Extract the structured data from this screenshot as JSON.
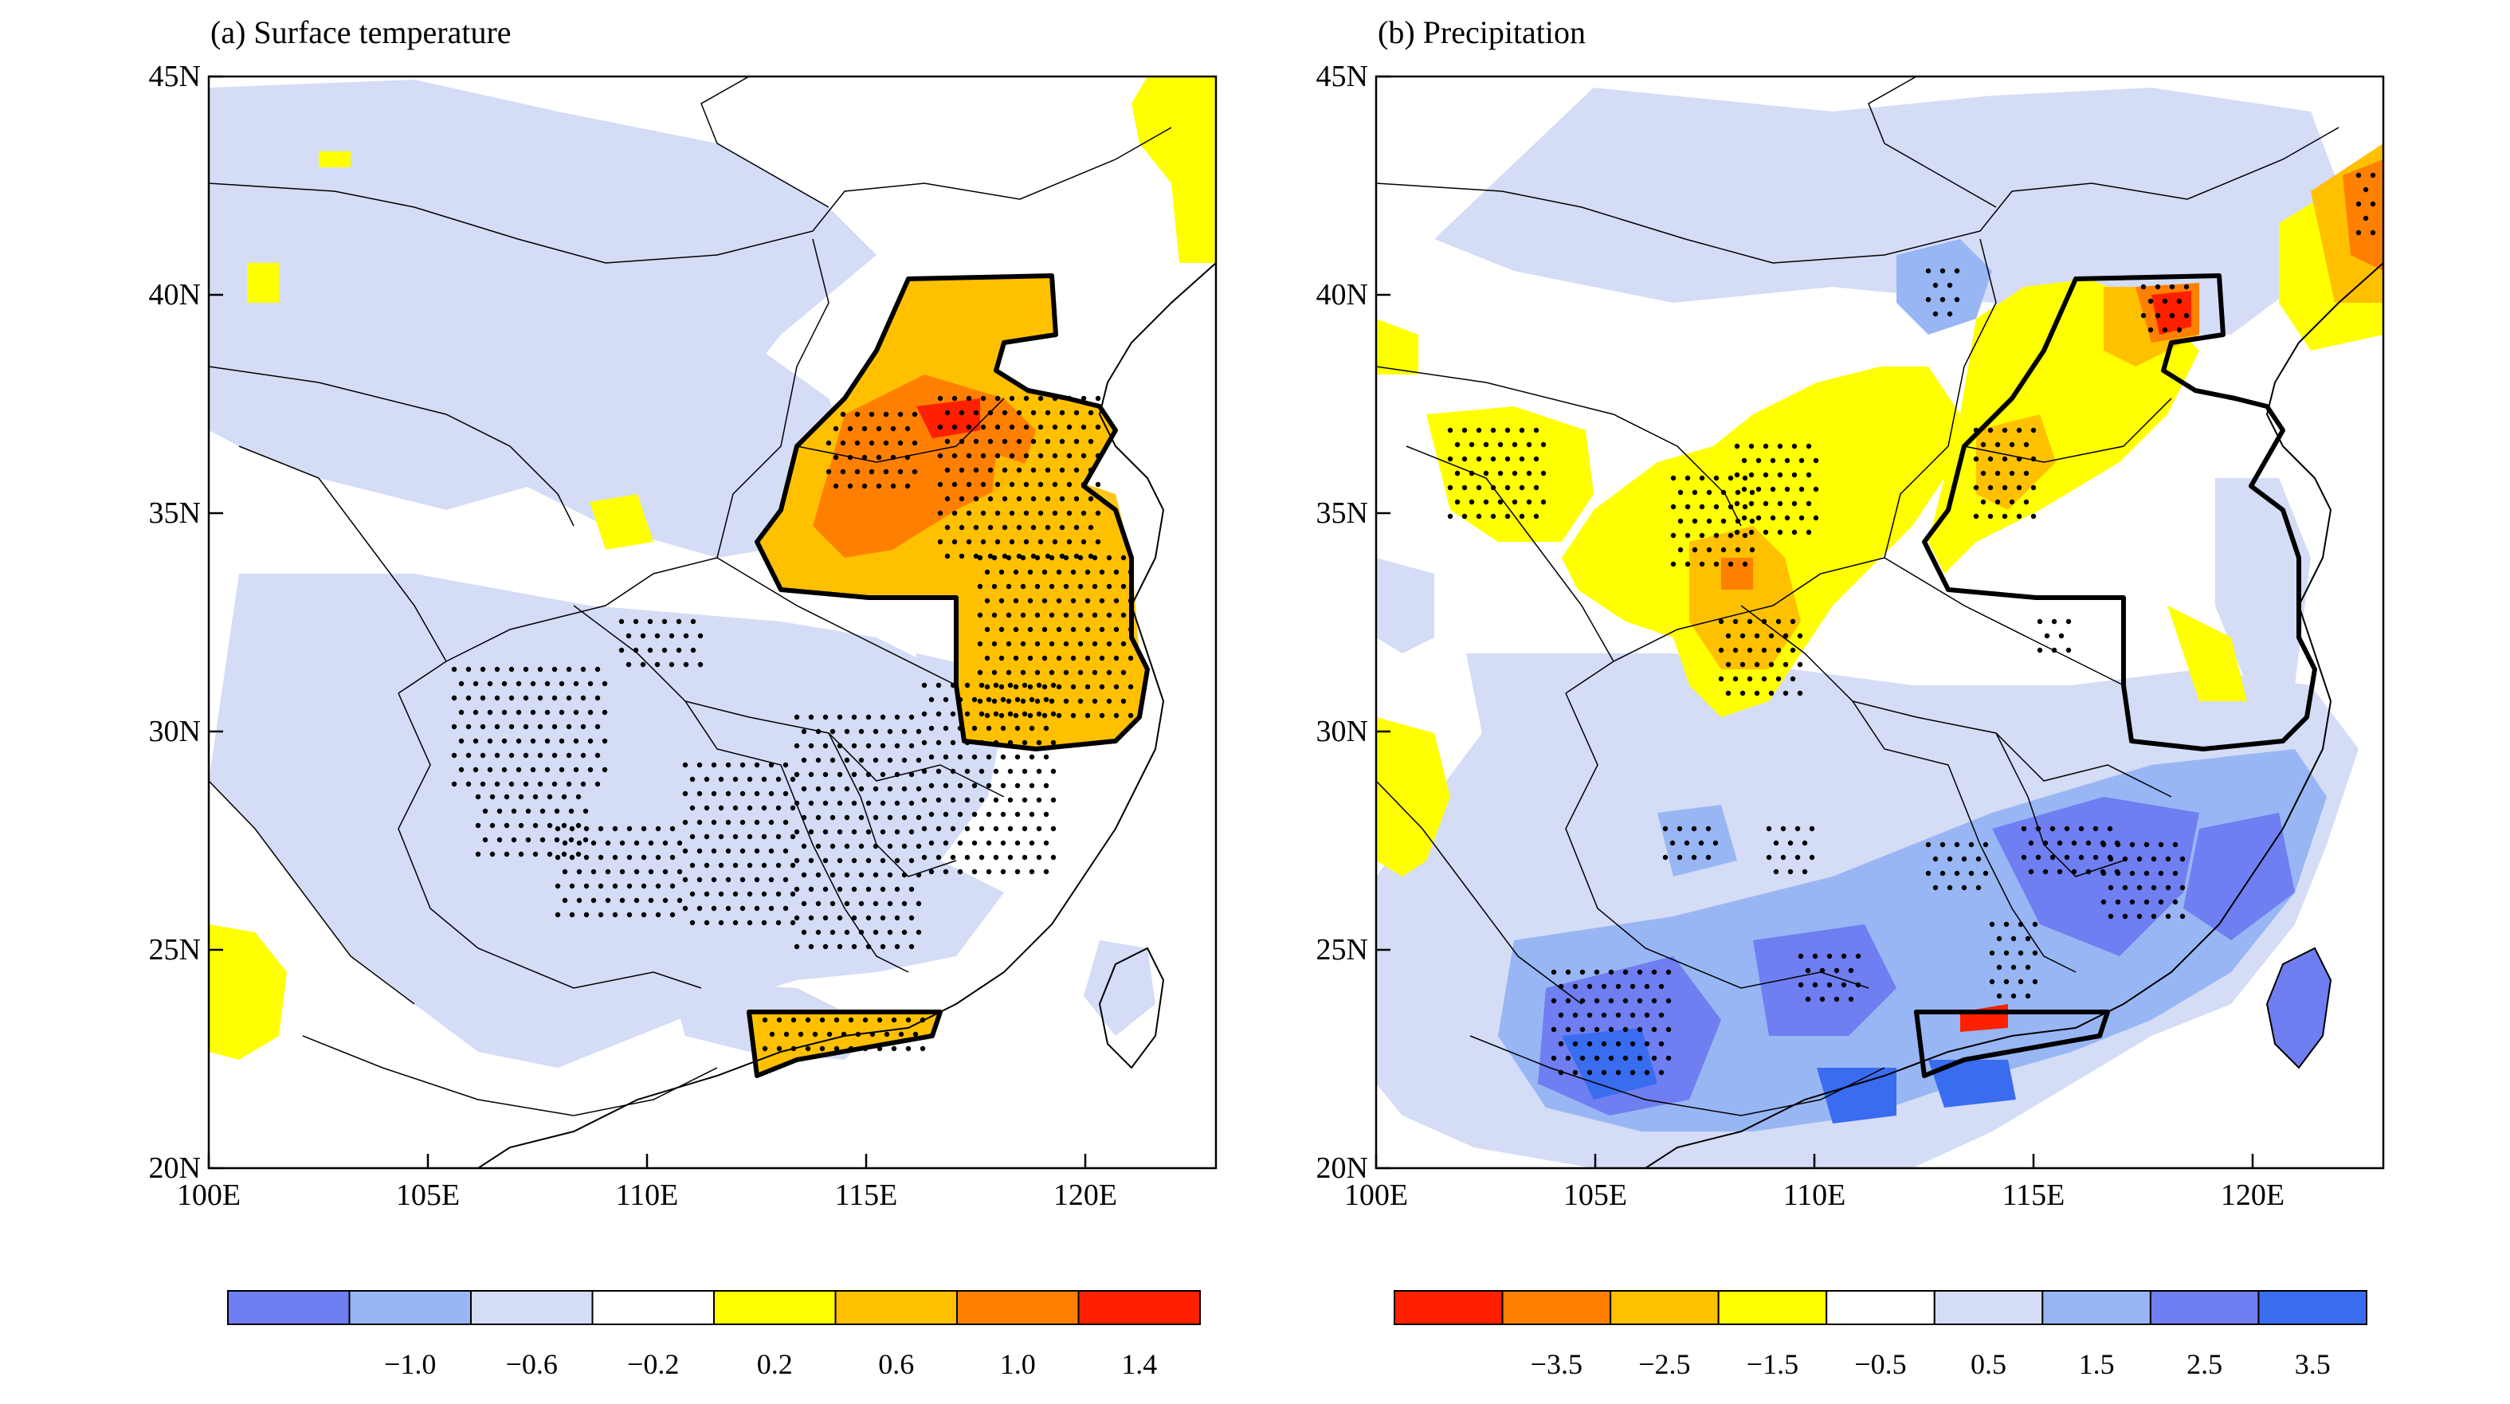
{
  "panels": [
    {
      "title": "(a) Surface temperature",
      "lat_labels": [
        "45N",
        "40N",
        "35N",
        "30N",
        "25N",
        "20N"
      ],
      "lon_labels": [
        "100E",
        "105E",
        "110E",
        "115E",
        "120E"
      ],
      "colorbar": {
        "colors": [
          "#6f7ef0",
          "#98b6f4",
          "#d4dcf6",
          "#ffffff",
          "#ffff00",
          "#ffc000",
          "#ff8000",
          "#ff2000"
        ],
        "labels": [
          "−1.0",
          "−0.6",
          "−0.2",
          "0.2",
          "0.6",
          "1.0",
          "1.4"
        ]
      }
    },
    {
      "title": "(b) Precipitation",
      "lat_labels": [
        "45N",
        "40N",
        "35N",
        "30N",
        "25N",
        "20N"
      ],
      "lon_labels": [
        "100E",
        "105E",
        "110E",
        "115E",
        "120E"
      ],
      "colorbar": {
        "colors": [
          "#ff2000",
          "#ff8000",
          "#ffc000",
          "#ffff00",
          "#ffffff",
          "#d4dcf6",
          "#98b6f4",
          "#6f7ef0",
          "#3a6cf0"
        ],
        "labels": [
          "−3.5",
          "−2.5",
          "−1.5",
          "−0.5",
          "0.5",
          "1.5",
          "2.5",
          "3.5"
        ]
      }
    }
  ],
  "map_extent": {
    "lon": [
      100,
      123
    ],
    "lat": [
      20,
      45
    ]
  }
}
